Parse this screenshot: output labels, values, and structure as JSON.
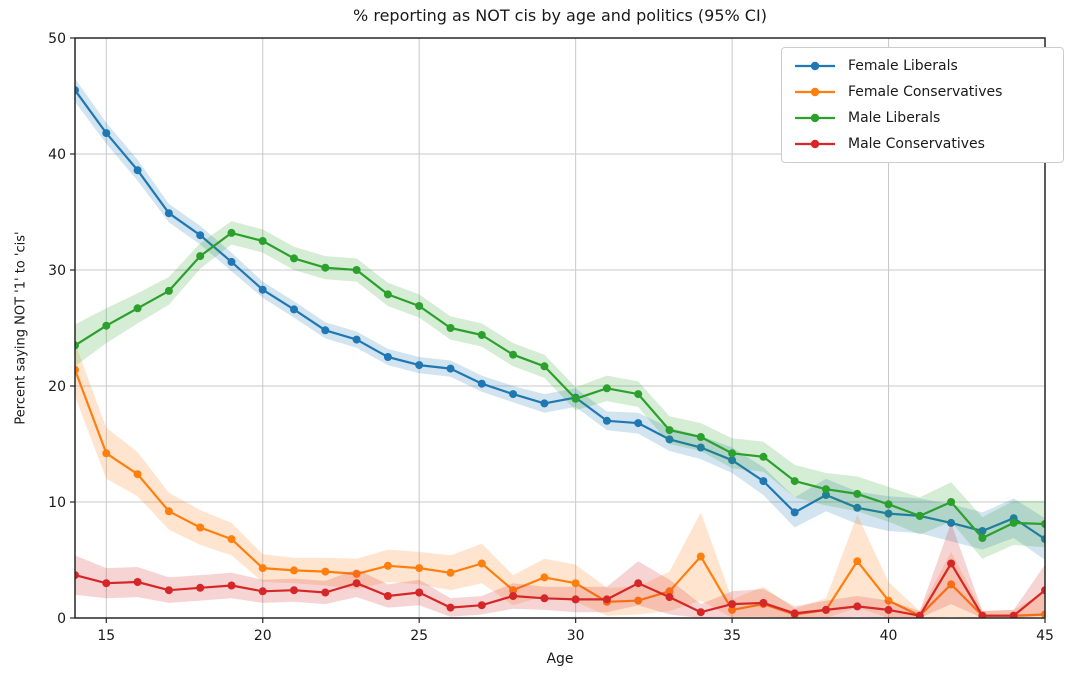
{
  "chart_data": {
    "type": "line",
    "title": "% reporting as NOT cis by age and politics (95% CI)",
    "xlabel": "Age",
    "ylabel": "Percent saying NOT '1' to 'cis'",
    "xlim": [
      14,
      45
    ],
    "ylim": [
      0,
      50
    ],
    "xticks": [
      15,
      20,
      25,
      30,
      35,
      40,
      45
    ],
    "yticks": [
      0,
      10,
      20,
      30,
      40,
      50
    ],
    "grid": true,
    "legend_position": "upper right",
    "ci_level": "95%",
    "x": [
      14,
      15,
      16,
      17,
      18,
      19,
      20,
      21,
      22,
      23,
      24,
      25,
      26,
      27,
      28,
      29,
      30,
      31,
      32,
      33,
      34,
      35,
      36,
      37,
      38,
      39,
      40,
      41,
      42,
      43,
      44,
      45
    ],
    "series": [
      {
        "name": "Female Liberals",
        "color": "#1f77b4",
        "values": [
          45.5,
          41.8,
          38.6,
          34.9,
          33.0,
          30.7,
          28.3,
          26.6,
          24.8,
          24.0,
          22.5,
          21.8,
          21.5,
          20.2,
          19.3,
          18.5,
          19.0,
          17.0,
          16.8,
          15.4,
          14.7,
          13.6,
          11.8,
          9.1,
          10.6,
          9.5,
          9.0,
          8.8,
          8.2,
          7.5,
          8.6,
          6.8
        ],
        "ci": [
          1.0,
          0.9,
          0.9,
          0.8,
          0.8,
          0.8,
          0.7,
          0.7,
          0.7,
          0.7,
          0.7,
          0.7,
          0.7,
          0.7,
          0.7,
          0.8,
          0.8,
          0.8,
          0.9,
          1.0,
          1.0,
          1.1,
          1.2,
          1.3,
          1.4,
          1.4,
          1.5,
          1.5,
          1.6,
          1.6,
          1.7,
          1.8
        ]
      },
      {
        "name": "Female Conservatives",
        "color": "#ff7f0e",
        "values": [
          21.4,
          14.2,
          12.4,
          9.2,
          7.8,
          6.8,
          4.3,
          4.1,
          4.0,
          3.8,
          4.5,
          4.3,
          3.9,
          4.7,
          2.4,
          3.5,
          3.0,
          1.4,
          1.5,
          2.3,
          5.3,
          0.7,
          1.2,
          0.3,
          0.7,
          4.9,
          1.5,
          0.2,
          2.9,
          0.2,
          0.2,
          0.3
        ],
        "ci": [
          2.3,
          2.2,
          1.9,
          1.6,
          1.5,
          1.4,
          1.2,
          1.1,
          1.2,
          1.3,
          1.4,
          1.4,
          1.5,
          1.7,
          1.3,
          1.6,
          1.6,
          1.2,
          1.2,
          1.7,
          3.8,
          0.9,
          1.5,
          0.5,
          1.0,
          4.0,
          1.6,
          0.4,
          2.8,
          0.4,
          0.5,
          2.0
        ]
      },
      {
        "name": "Male Liberals",
        "color": "#2ca02c",
        "values": [
          23.5,
          25.2,
          26.7,
          28.2,
          31.2,
          33.2,
          32.5,
          31.0,
          30.2,
          30.0,
          27.9,
          26.9,
          25.0,
          24.4,
          22.7,
          21.7,
          18.9,
          19.8,
          19.3,
          16.2,
          15.6,
          14.2,
          13.9,
          11.8,
          11.1,
          10.7,
          9.8,
          8.8,
          10.0,
          6.9,
          8.2,
          8.1
        ],
        "ci": [
          1.8,
          1.5,
          1.3,
          1.2,
          1.1,
          1.0,
          1.0,
          1.0,
          1.0,
          1.0,
          1.0,
          1.0,
          1.0,
          1.0,
          1.0,
          1.0,
          1.0,
          1.1,
          1.1,
          1.2,
          1.2,
          1.3,
          1.3,
          1.4,
          1.4,
          1.5,
          1.5,
          1.6,
          1.7,
          1.8,
          1.9,
          2.0
        ]
      },
      {
        "name": "Male Conservatives",
        "color": "#d62728",
        "values": [
          3.7,
          3.0,
          3.1,
          2.4,
          2.6,
          2.8,
          2.3,
          2.4,
          2.2,
          3.0,
          1.9,
          2.2,
          0.9,
          1.1,
          1.9,
          1.7,
          1.6,
          1.6,
          3.0,
          1.8,
          0.5,
          1.2,
          1.3,
          0.4,
          0.7,
          1.0,
          0.7,
          0.2,
          4.7,
          0.2,
          0.2,
          2.4
        ],
        "ci": [
          1.7,
          1.3,
          1.3,
          1.1,
          1.1,
          1.1,
          1.0,
          1.0,
          1.0,
          1.2,
          1.0,
          1.1,
          0.8,
          0.8,
          1.1,
          1.0,
          1.1,
          1.1,
          1.9,
          1.5,
          0.7,
          1.1,
          1.2,
          0.6,
          0.8,
          0.9,
          0.8,
          0.4,
          3.5,
          0.4,
          0.5,
          2.2
        ]
      }
    ],
    "style": {
      "grid_color": "#c8c8c8",
      "spine_color": "#262626",
      "text_color": "#1a1a1a",
      "band_opacity": 0.2
    }
  }
}
